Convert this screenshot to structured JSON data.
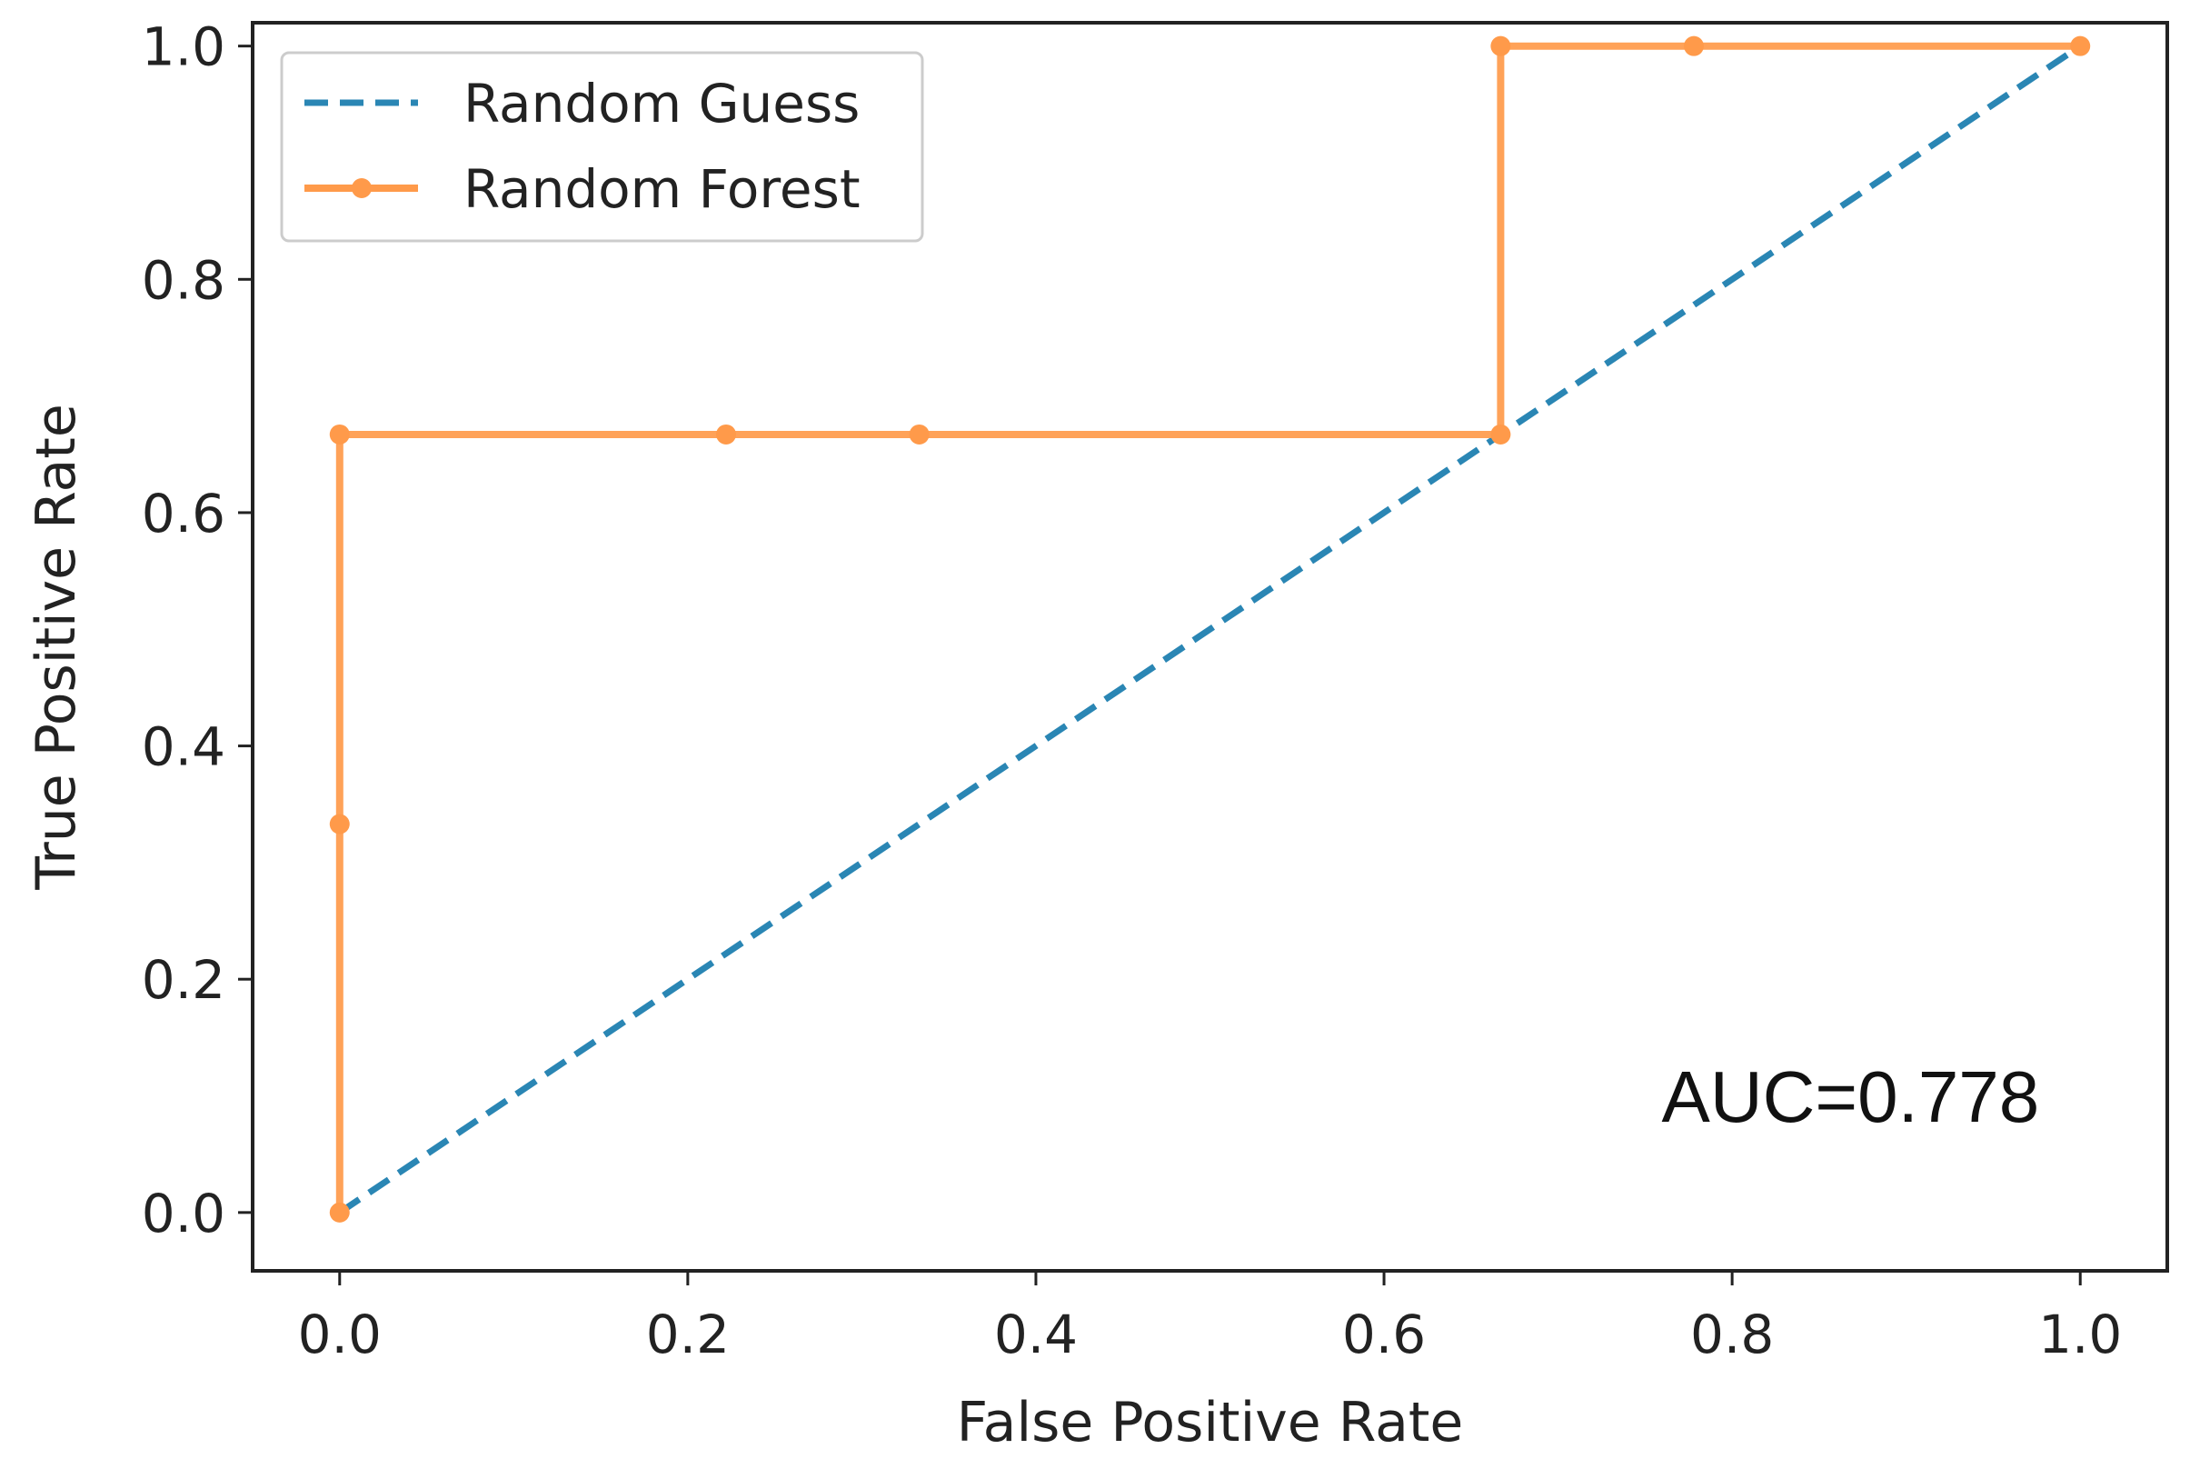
{
  "chart_data": {
    "type": "line",
    "title": "",
    "xlabel": "False Positive Rate",
    "ylabel": "True Positive Rate",
    "xlim": [
      -0.05,
      1.05
    ],
    "ylim": [
      -0.05,
      1.02
    ],
    "xticks": [
      0.0,
      0.2,
      0.4,
      0.6,
      0.8,
      1.0
    ],
    "xtick_labels": [
      "0.0",
      "0.2",
      "0.4",
      "0.6",
      "0.8",
      "1.0"
    ],
    "yticks": [
      0.0,
      0.2,
      0.4,
      0.6,
      0.8,
      1.0
    ],
    "ytick_labels": [
      "0.0",
      "0.2",
      "0.4",
      "0.6",
      "0.8",
      "1.0"
    ],
    "grid": false,
    "legend_position": "top-left",
    "series": [
      {
        "name": "Random Guess",
        "style": "dashed",
        "color": "#2a86b4",
        "x": [
          0.0,
          1.0
        ],
        "y": [
          0.0,
          1.0
        ]
      },
      {
        "name": "Random Forest",
        "style": "solid-markers",
        "color": "#ff9a4a",
        "x": [
          0.0,
          0.0,
          0.0,
          0.222,
          0.333,
          0.667,
          0.667,
          0.778,
          1.0
        ],
        "y": [
          0.0,
          0.333,
          0.667,
          0.667,
          0.667,
          0.667,
          1.0,
          1.0,
          1.0
        ]
      }
    ],
    "annotations": [
      {
        "text": "AUC=0.778",
        "x": 0.868,
        "y": 0.078
      }
    ]
  }
}
